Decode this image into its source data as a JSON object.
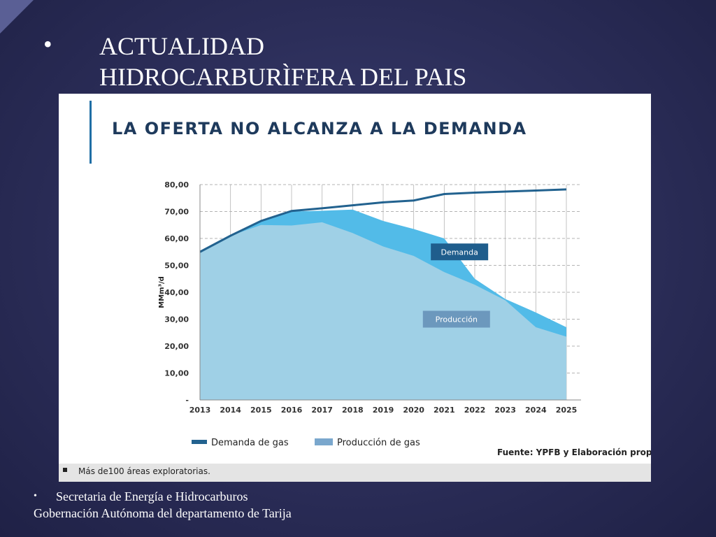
{
  "slide": {
    "bullet": "•",
    "title_line1": "ACTUALIDAD",
    "title_line2": "HIDROCARBURÌFERA DEL PAIS",
    "footer_bullet": "•",
    "footer_line1": "Secretaria de Energía e Hidrocarburos",
    "footer_line2": "Gobernación Autónoma del departamento de Tarija",
    "bottom_note": "Más de100 áreas exploratorias."
  },
  "chart_data": {
    "type": "area",
    "title": "LA OFERTA NO ALCANZA A LA DEMANDA",
    "ylabel": "MMm³/d",
    "xlabel": "",
    "ylim": [
      0,
      80
    ],
    "ytick_labels": [
      "-",
      "10,00",
      "20,00",
      "30,00",
      "40,00",
      "50,00",
      "60,00",
      "70,00",
      "80,00"
    ],
    "x": [
      "2013",
      "2014",
      "2015",
      "2016",
      "2017",
      "2018",
      "2019",
      "2020",
      "2021",
      "2022",
      "2023",
      "2024",
      "2025"
    ],
    "grid": true,
    "legend_position": "bottom",
    "source": "Fuente: YPFB y Elaboración propia",
    "series": [
      {
        "name": "Demanda de gas",
        "kind": "line",
        "values": [
          55.0,
          61.0,
          66.5,
          70.2,
          71.2,
          72.3,
          73.4,
          74.1,
          76.5,
          77.0,
          77.4,
          77.8,
          78.2
        ],
        "color": "#22628f"
      },
      {
        "name": "Producción de gas",
        "kind": "area",
        "values": [
          55.0,
          61.0,
          65.0,
          64.8,
          66.0,
          62.0,
          57.0,
          53.5,
          47.5,
          42.8,
          37.0,
          27.0,
          23.5
        ],
        "color": "#9fd0e6"
      },
      {
        "name": "",
        "kind": "area",
        "values": [
          55.0,
          61.0,
          66.3,
          70.0,
          70.3,
          70.7,
          66.5,
          63.5,
          60.0,
          45.0,
          37.5,
          32.5,
          27.0
        ],
        "color": "#52bbe8"
      }
    ],
    "annotations": [
      {
        "text": "Demanda",
        "at": "2021.5",
        "value": 55,
        "color": "#1f5d8c"
      },
      {
        "text": "Producción",
        "at": "2021.4",
        "value": 30,
        "color": "#6c98bd"
      }
    ]
  }
}
